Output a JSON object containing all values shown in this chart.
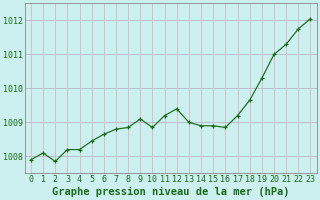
{
  "x": [
    0,
    1,
    2,
    3,
    4,
    5,
    6,
    7,
    8,
    9,
    10,
    11,
    12,
    13,
    14,
    15,
    16,
    17,
    18,
    19,
    20,
    21,
    22,
    23
  ],
  "y": [
    1007.9,
    1008.1,
    1007.85,
    1008.2,
    1008.2,
    1008.45,
    1008.65,
    1008.8,
    1008.85,
    1009.1,
    1008.85,
    1009.2,
    1009.4,
    1009.0,
    1008.9,
    1008.9,
    1008.85,
    1009.2,
    1009.65,
    1010.3,
    1011.0,
    1011.3,
    1011.75,
    1012.05
  ],
  "line_color": "#1a6b1a",
  "marker": "P",
  "marker_size": 2.8,
  "bg_color": "#ccefef",
  "plot_bg_color": "#ccefef",
  "grid_color_h": "#b8b8c8",
  "grid_color_v": "#d8b8c0",
  "xlabel": "Graphe pression niveau de la mer (hPa)",
  "xlabel_color": "#1a6b1a",
  "xlabel_fontsize": 7.5,
  "tick_color": "#1a6b1a",
  "tick_fontsize": 6.0,
  "ytick_labels": [
    "1008",
    "1009",
    "1010",
    "1011",
    "1012"
  ],
  "ytick_values": [
    1008,
    1009,
    1010,
    1011,
    1012
  ],
  "ylim": [
    1007.5,
    1012.5
  ],
  "xlim": [
    -0.5,
    23.5
  ]
}
